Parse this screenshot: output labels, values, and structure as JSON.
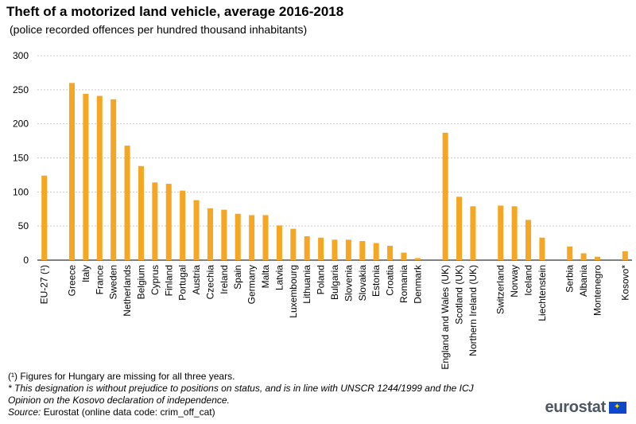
{
  "title": "Theft of a motorized land vehicle, average 2016-2018",
  "subtitle": "(police recorded offences per hundred  thousand  inhabitants)",
  "chart_data": {
    "type": "bar",
    "ylim": [
      0,
      300
    ],
    "yticks": [
      "0",
      "50",
      "100",
      "150",
      "200",
      "250",
      "300"
    ],
    "bar_color": "#f5a623",
    "categories": [
      "EU-27 (¹)",
      "",
      "Greece",
      "Italy",
      "France",
      "Sweden",
      "Netherlands",
      "Belgium",
      "Cyprus",
      "Finland",
      "Portugal",
      "Austria",
      "Czechia",
      "Ireland",
      "Spain",
      "Germany",
      "Malta",
      "Latvia",
      "Luxembourg",
      "Lithuania",
      "Poland",
      "Bulgaria",
      "Slovenia",
      "Slovakia",
      "Estonia",
      "Croatia",
      "Romania",
      "Denmark",
      "",
      "England and Wales (UK)",
      "Scotland (UK)",
      "Northern Ireland (UK)",
      "",
      "Switzerland",
      "Norway",
      "Iceland",
      "Liechtenstein",
      "",
      "Serbia",
      "Albania",
      "Montenegro",
      "",
      "Kosovo*"
    ],
    "values": [
      124,
      null,
      260,
      244,
      241,
      236,
      168,
      138,
      114,
      112,
      102,
      88,
      76,
      74,
      68,
      66,
      66,
      51,
      46,
      35,
      33,
      30,
      30,
      28,
      25,
      21,
      11,
      3,
      null,
      187,
      93,
      79,
      null,
      80,
      79,
      59,
      33,
      null,
      20,
      10,
      5,
      null,
      13
    ]
  },
  "notes": {
    "note1": "(¹) Figures for Hungary  are missing for all three years.",
    "note2": "*  This designation is without  prejudice to positions on status, and is in line with  UNSCR 1244/1999 and the ICJ",
    "note3": "Opinion on the Kosovo declaration of independence.",
    "source_label": "Source:",
    "source_text": " Eurostat (online data code: crim_off_cat)"
  },
  "logo": {
    "text": "eurostat",
    "icon": "eu-flag-icon"
  }
}
